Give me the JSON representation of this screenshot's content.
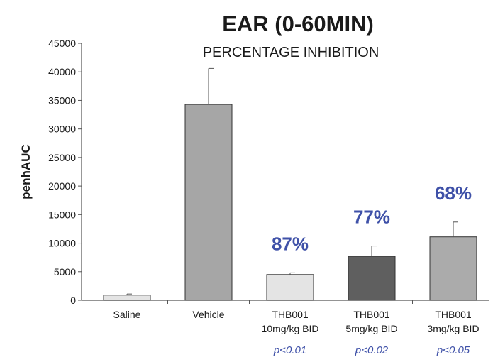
{
  "chart_data": {
    "type": "bar",
    "title": "EAR (0-60MIN)",
    "subtitle": "PERCENTAGE INHIBITION",
    "ylabel": "penhAUC",
    "xlabel": "",
    "ylim": [
      0,
      45000
    ],
    "yticks": [
      "45000",
      "40000",
      "35000",
      "30000",
      "25000",
      "20000",
      "15000",
      "10000",
      "5000",
      "0"
    ],
    "categories": [
      [
        "Saline"
      ],
      [
        "Vehicle"
      ],
      [
        "THB001",
        "10mg/kg BID"
      ],
      [
        "THB001",
        "5mg/kg BID"
      ],
      [
        "THB001",
        "3mg/kg BID"
      ]
    ],
    "values": [
      900,
      34300,
      4500,
      7700,
      11100
    ],
    "error_upper": [
      1100,
      40600,
      4800,
      9500,
      13700
    ],
    "bar_colors": [
      "#e4e4e4",
      "#a6a6a6",
      "#e4e4e4",
      "#5f5f5f",
      "#ababab"
    ],
    "inhibition": [
      "",
      "",
      "87%",
      "77%",
      "68%"
    ],
    "p_values": [
      "",
      "",
      "p<0.01",
      "p<0.02",
      "p<0.05"
    ],
    "accent_color": "#3f51a8",
    "grid": false,
    "legend": "none"
  }
}
